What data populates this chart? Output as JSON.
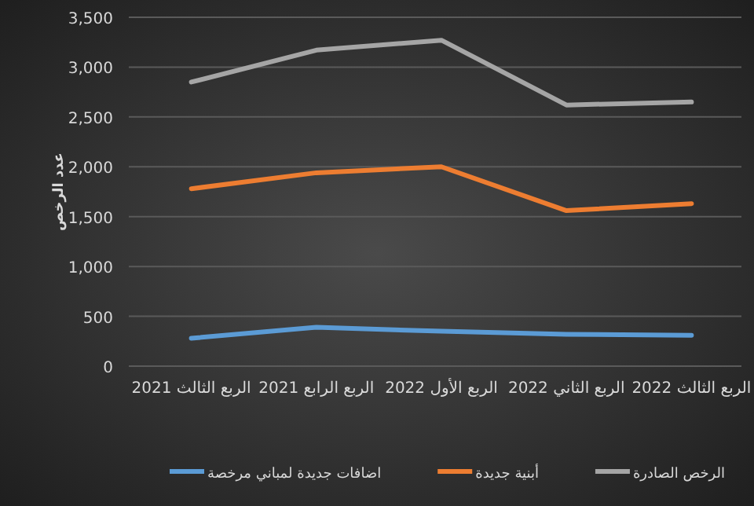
{
  "chart_data": {
    "type": "line",
    "ylabel": "عدد الرخص",
    "categories": [
      "الربع الثالث 2021",
      "الربع الرابع 2021",
      "الربع الأول 2022",
      "الربع الثاني 2022",
      "الربع الثالث 2022"
    ],
    "series": [
      {
        "name": "اضافات جديدة لمباني مرخصة",
        "color": "#5b9bd5",
        "values": [
          280,
          390,
          350,
          320,
          310
        ]
      },
      {
        "name": "أبنية جديدة",
        "color": "#ed7d31",
        "values": [
          1780,
          1940,
          2000,
          1560,
          1630
        ]
      },
      {
        "name": "الرخص الصادرة",
        "color": "#a5a5a5",
        "values": [
          2850,
          3170,
          3270,
          2620,
          2650
        ]
      }
    ],
    "ylim": [
      0,
      3500
    ],
    "yticks": [
      {
        "value": 0,
        "label": "0"
      },
      {
        "value": 500,
        "label": "500"
      },
      {
        "value": 1000,
        "label": "1,000"
      },
      {
        "value": 1500,
        "label": "1,500"
      },
      {
        "value": 2000,
        "label": "2,000"
      },
      {
        "value": 2500,
        "label": "2,500"
      },
      {
        "value": 3000,
        "label": "3,000"
      },
      {
        "value": 3500,
        "label": "3,500"
      }
    ],
    "grid": "y",
    "legend": "bottom",
    "marker": "none",
    "line_style": "solid"
  }
}
